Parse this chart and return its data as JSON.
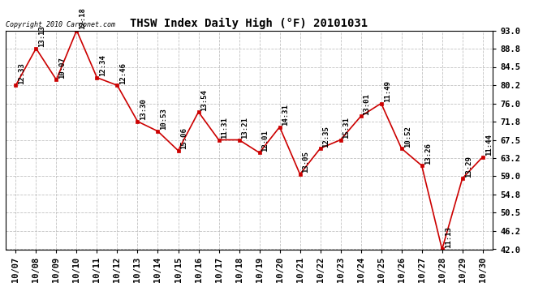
{
  "title": "THSW Index Daily High (°F) 20101031",
  "copyright": "Copyright 2010 Cardonet.com",
  "dates": [
    "10/07",
    "10/08",
    "10/09",
    "10/10",
    "10/11",
    "10/12",
    "10/13",
    "10/14",
    "10/15",
    "10/16",
    "10/17",
    "10/18",
    "10/19",
    "10/20",
    "10/21",
    "10/22",
    "10/23",
    "10/24",
    "10/25",
    "10/26",
    "10/27",
    "10/28",
    "10/29",
    "10/30"
  ],
  "values": [
    80.2,
    88.8,
    81.5,
    93.0,
    82.0,
    80.2,
    71.8,
    69.5,
    65.0,
    74.0,
    67.5,
    67.5,
    64.5,
    70.5,
    59.5,
    65.5,
    67.5,
    73.0,
    76.0,
    65.5,
    61.5,
    42.0,
    58.5,
    63.5
  ],
  "labels": [
    "12:33",
    "13:13",
    "10:07",
    "12:18",
    "12:34",
    "12:46",
    "13:30",
    "10:53",
    "15:06",
    "13:54",
    "11:31",
    "13:21",
    "12:01",
    "14:31",
    "13:05",
    "12:35",
    "15:31",
    "13:01",
    "11:49",
    "10:52",
    "13:26",
    "11:13",
    "13:29",
    "11:44"
  ],
  "ylim_min": 42.0,
  "ylim_max": 93.0,
  "yticks": [
    42.0,
    46.2,
    50.5,
    54.8,
    59.0,
    63.2,
    67.5,
    71.8,
    76.0,
    80.2,
    84.5,
    88.8,
    93.0
  ],
  "line_color": "#cc0000",
  "marker_color": "#cc0000",
  "bg_color": "#ffffff",
  "grid_color": "#bbbbbb",
  "title_fontsize": 10,
  "label_fontsize": 6.5,
  "tick_fontsize": 7.5,
  "copyright_fontsize": 6
}
